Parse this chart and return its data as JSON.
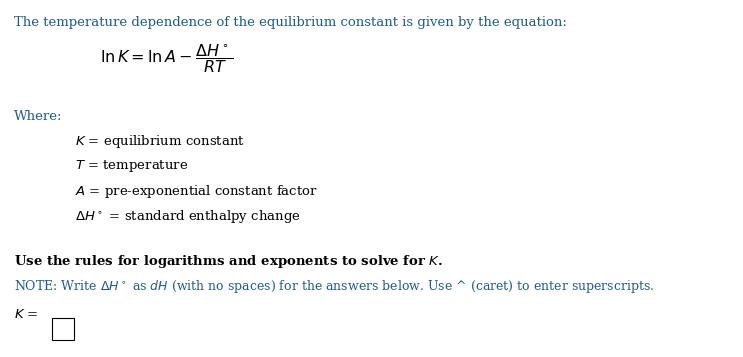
{
  "bg_color": "#ffffff",
  "blue_color": "#1F5C8B",
  "fig_width": 7.43,
  "fig_height": 3.57,
  "dpi": 100,
  "title": "The temperature dependence of the equilibrium constant is given by the equation:",
  "where_label": "Where:",
  "definitions": [
    "$K$ = equilibrium constant",
    "$T$ = temperature",
    "$A$ = pre-exponential constant factor",
    "$\\Delta H^\\circ$ = standard enthalpy change"
  ],
  "bold_line": "Use the rules for logarithms and exponents to solve for $K$.",
  "note_line": "NOTE: Write $\\Delta H^\\circ$ as $dH$ (with no spaces) for the answers below. Use ^ (caret) to enter superscripts.",
  "answer_label": "$K$ ="
}
